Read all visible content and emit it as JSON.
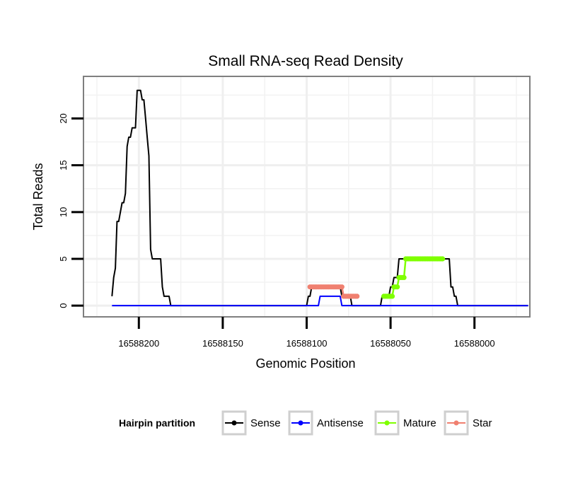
{
  "chart_data": {
    "type": "line",
    "title": "Small RNA-seq Read Density",
    "xlabel": "Genomic Position",
    "ylabel": "Total Reads",
    "x_reversed": true,
    "xlim": [
      16588233,
      16587967
    ],
    "ylim": [
      -1.2,
      24.5
    ],
    "x_ticks": [
      16588200,
      16588150,
      16588100,
      16588050,
      16588000
    ],
    "x_tick_labels": [
      "16588200",
      "16588150",
      "16588100",
      "16588050",
      "16588000"
    ],
    "y_ticks": [
      0,
      5,
      10,
      15,
      20
    ],
    "y_tick_labels": [
      "0",
      "5",
      "10",
      "15",
      "20"
    ],
    "grid": true,
    "legend": {
      "title": "Hairpin partition",
      "position": "bottom",
      "entries": [
        "Sense",
        "Antisense",
        "Mature",
        "Star"
      ]
    },
    "series": [
      {
        "name": "Sense",
        "color": "#000000",
        "markers": false,
        "x": [
          16588216,
          16588215,
          16588214,
          16588213,
          16588212,
          16588211,
          16588210,
          16588209,
          16588208,
          16588207,
          16588206,
          16588205,
          16588204,
          16588203,
          16588202,
          16588201,
          16588200,
          16588199,
          16588198,
          16588197,
          16588196,
          16588195,
          16588194,
          16588193,
          16588192,
          16588191,
          16588190,
          16588189,
          16588188,
          16588187,
          16588186,
          16588185,
          16588184,
          16588183,
          16588182,
          16588181,
          16588180,
          16588179,
          16588178,
          16588177,
          16588176,
          16588175,
          16588174,
          16588173,
          16588100,
          16588099,
          16588098,
          16588097,
          16588096,
          16588090,
          16588089,
          16588088,
          16588087,
          16588086,
          16588085,
          16588080,
          16588079,
          16588078,
          16588077,
          16588076,
          16588075,
          16588074,
          16588073,
          16588072,
          16588071,
          16588070,
          16588069,
          16588068,
          16588067,
          16588066,
          16588065,
          16588064,
          16588063,
          16588062,
          16588061,
          16588060,
          16588059,
          16588058,
          16588057,
          16588056,
          16588055,
          16588054,
          16588053,
          16588052,
          16588051,
          16588050,
          16588049,
          16588048,
          16588047,
          16588046,
          16588045,
          16588044,
          16588043,
          16588042,
          16588041,
          16588040,
          16588039,
          16588038,
          16588037,
          16588036,
          16588035,
          16588034,
          16588033,
          16588032,
          16588031,
          16588030,
          16588029,
          16588028,
          16588027,
          16588026,
          16588025,
          16588024,
          16588023,
          16588022,
          16588021,
          16588020,
          16588019,
          16588018,
          16588017,
          16588016,
          16588015,
          16588014,
          16588013,
          16588012,
          16588011,
          16588010,
          16588009,
          16587968
        ],
        "y": [
          1,
          3,
          4,
          9,
          9,
          10,
          11,
          11,
          12,
          17,
          18,
          18,
          19,
          19,
          19,
          23,
          23,
          23,
          22,
          22,
          20,
          18,
          16,
          6,
          5,
          5,
          5,
          5,
          5,
          5,
          2,
          1,
          1,
          1,
          1,
          0,
          0,
          0,
          0,
          0,
          0,
          0,
          0,
          0,
          0,
          1,
          1,
          2,
          2,
          2,
          2,
          2,
          2,
          2,
          2,
          2,
          1,
          1,
          1,
          1,
          1,
          1,
          0,
          0,
          0,
          0,
          0,
          0,
          0,
          0,
          0,
          0,
          0,
          0,
          0,
          0,
          0,
          0,
          0,
          0,
          1,
          1,
          1,
          1,
          1,
          2,
          2,
          3,
          3,
          3,
          5,
          5,
          5,
          5,
          5,
          5,
          5,
          5,
          5,
          5,
          5,
          5,
          5,
          5,
          5,
          5,
          5,
          5,
          5,
          5,
          5,
          5,
          5,
          5,
          5,
          5,
          5,
          5,
          5,
          5,
          5,
          2,
          2,
          1,
          1,
          0,
          0,
          0
        ]
      },
      {
        "name": "Antisense",
        "color": "#0000ff",
        "markers": false,
        "x": [
          16588216,
          16588093,
          16588092,
          16588080,
          16588079,
          16588050,
          16588049,
          16588025,
          16588024,
          16588010,
          16588009,
          16587968
        ],
        "y": [
          0,
          0,
          1,
          1,
          0,
          0,
          0,
          0,
          0,
          0,
          0,
          0
        ]
      },
      {
        "name": "Mature",
        "color": "#7fff00",
        "markers": true,
        "x": [
          16588054,
          16588053,
          16588052,
          16588051,
          16588050,
          16588049,
          16588048,
          16588047,
          16588046,
          16588045,
          16588044,
          16588043,
          16588042,
          16588041,
          16588040,
          16588039,
          16588038,
          16588037,
          16588036,
          16588035,
          16588034,
          16588033,
          16588032,
          16588031,
          16588030,
          16588029,
          16588028,
          16588027,
          16588026,
          16588025,
          16588024,
          16588023,
          16588022,
          16588021,
          16588020,
          16588019
        ],
        "y": [
          1,
          1,
          1,
          1,
          1,
          1,
          2,
          2,
          2,
          3,
          3,
          3,
          3,
          5,
          5,
          5,
          5,
          5,
          5,
          5,
          5,
          5,
          5,
          5,
          5,
          5,
          5,
          5,
          5,
          5,
          5,
          5,
          5,
          5,
          5,
          5
        ]
      },
      {
        "name": "Star",
        "color": "#f08070",
        "markers": true,
        "x": [
          16588098,
          16588097,
          16588096,
          16588095,
          16588094,
          16588093,
          16588092,
          16588091,
          16588090,
          16588089,
          16588088,
          16588087,
          16588086,
          16588085,
          16588084,
          16588083,
          16588082,
          16588081,
          16588080,
          16588079,
          16588078,
          16588077,
          16588076,
          16588075,
          16588074,
          16588073,
          16588072,
          16588071,
          16588070
        ],
        "y": [
          2,
          2,
          2,
          2,
          2,
          2,
          2,
          2,
          2,
          2,
          2,
          2,
          2,
          2,
          2,
          2,
          2,
          2,
          2,
          2,
          1,
          1,
          1,
          1,
          1,
          1,
          1,
          1,
          1
        ]
      }
    ]
  }
}
